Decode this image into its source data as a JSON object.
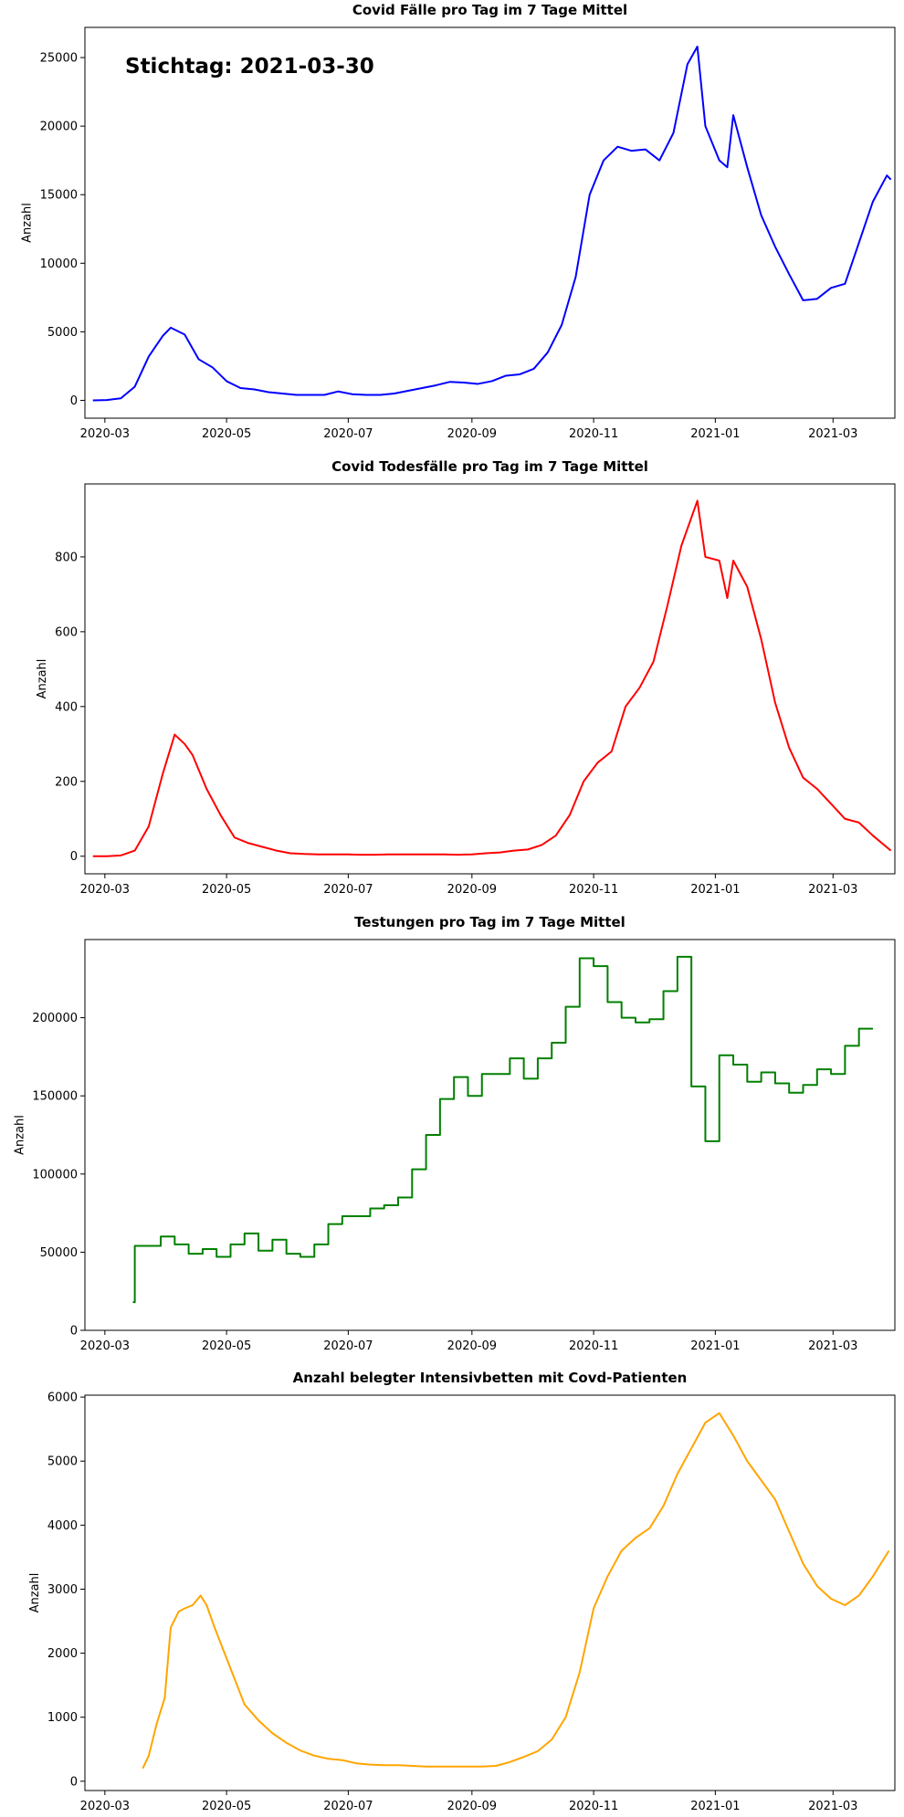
{
  "chart_data": [
    {
      "type": "line",
      "title": "Covid Fälle pro Tag im 7 Tage Mittel",
      "annotation": "Stichtag: 2021-03-30",
      "ylabel": "Anzahl",
      "color": "#0000ff",
      "x": [
        "2020-02-24",
        "2020-03-02",
        "2020-03-09",
        "2020-03-16",
        "2020-03-23",
        "2020-03-30",
        "2020-04-03",
        "2020-04-10",
        "2020-04-17",
        "2020-04-24",
        "2020-05-01",
        "2020-05-08",
        "2020-05-15",
        "2020-05-22",
        "2020-05-29",
        "2020-06-05",
        "2020-06-12",
        "2020-06-19",
        "2020-06-26",
        "2020-07-03",
        "2020-07-10",
        "2020-07-17",
        "2020-07-24",
        "2020-07-31",
        "2020-08-07",
        "2020-08-14",
        "2020-08-21",
        "2020-08-28",
        "2020-09-04",
        "2020-09-11",
        "2020-09-18",
        "2020-09-25",
        "2020-10-02",
        "2020-10-09",
        "2020-10-16",
        "2020-10-23",
        "2020-10-30",
        "2020-11-06",
        "2020-11-13",
        "2020-11-20",
        "2020-11-27",
        "2020-12-04",
        "2020-12-11",
        "2020-12-18",
        "2020-12-23",
        "2020-12-27",
        "2021-01-03",
        "2021-01-07",
        "2021-01-10",
        "2021-01-17",
        "2021-01-24",
        "2021-01-31",
        "2021-02-07",
        "2021-02-14",
        "2021-02-21",
        "2021-02-28",
        "2021-03-07",
        "2021-03-14",
        "2021-03-21",
        "2021-03-28",
        "2021-03-30"
      ],
      "values": [
        0,
        20,
        150,
        1000,
        3200,
        4700,
        5300,
        4800,
        3000,
        2400,
        1400,
        900,
        800,
        600,
        500,
        400,
        400,
        400,
        650,
        450,
        400,
        400,
        500,
        700,
        900,
        1100,
        1350,
        1300,
        1200,
        1400,
        1800,
        1900,
        2300,
        3500,
        5500,
        9000,
        15000,
        17500,
        18500,
        18200,
        18300,
        17500,
        19500,
        24500,
        25800,
        20000,
        17500,
        17000,
        20800,
        17000,
        13500,
        11200,
        9200,
        7300,
        7400,
        8200,
        8500,
        11500,
        14500,
        16400,
        16100
      ],
      "xlim": [
        "2020-02-20",
        "2021-04-01"
      ],
      "ylim": [
        -1300,
        27200
      ],
      "xticks": [
        {
          "value": "2020-03-01",
          "label": "2020-03"
        },
        {
          "value": "2020-05-01",
          "label": "2020-05"
        },
        {
          "value": "2020-07-01",
          "label": "2020-07"
        },
        {
          "value": "2020-09-01",
          "label": "2020-09"
        },
        {
          "value": "2020-11-01",
          "label": "2020-11"
        },
        {
          "value": "2021-01-01",
          "label": "2021-01"
        },
        {
          "value": "2021-03-01",
          "label": "2021-03"
        }
      ],
      "yticks": [
        0,
        5000,
        10000,
        15000,
        20000,
        25000
      ]
    },
    {
      "type": "line",
      "title": "Covid Todesfälle pro Tag im 7 Tage Mittel",
      "ylabel": "Anzahl",
      "color": "#ff0000",
      "x": [
        "2020-02-24",
        "2020-03-02",
        "2020-03-09",
        "2020-03-16",
        "2020-03-23",
        "2020-03-30",
        "2020-04-05",
        "2020-04-10",
        "2020-04-14",
        "2020-04-21",
        "2020-04-28",
        "2020-05-05",
        "2020-05-12",
        "2020-05-19",
        "2020-05-26",
        "2020-06-02",
        "2020-06-09",
        "2020-06-16",
        "2020-06-23",
        "2020-06-30",
        "2020-07-07",
        "2020-07-14",
        "2020-07-21",
        "2020-07-28",
        "2020-08-04",
        "2020-08-11",
        "2020-08-18",
        "2020-08-25",
        "2020-09-01",
        "2020-09-08",
        "2020-09-15",
        "2020-09-22",
        "2020-09-29",
        "2020-10-06",
        "2020-10-13",
        "2020-10-20",
        "2020-10-27",
        "2020-11-03",
        "2020-11-10",
        "2020-11-17",
        "2020-11-24",
        "2020-12-01",
        "2020-12-08",
        "2020-12-15",
        "2020-12-19",
        "2020-12-23",
        "2020-12-27",
        "2021-01-03",
        "2021-01-07",
        "2021-01-10",
        "2021-01-17",
        "2021-01-24",
        "2021-01-31",
        "2021-02-07",
        "2021-02-14",
        "2021-02-21",
        "2021-02-28",
        "2021-03-07",
        "2021-03-14",
        "2021-03-21",
        "2021-03-30"
      ],
      "values": [
        0,
        0,
        2,
        15,
        80,
        220,
        325,
        300,
        270,
        180,
        110,
        50,
        35,
        25,
        15,
        8,
        6,
        5,
        5,
        5,
        4,
        4,
        5,
        5,
        5,
        5,
        5,
        4,
        5,
        8,
        10,
        15,
        18,
        30,
        55,
        110,
        200,
        250,
        280,
        400,
        450,
        520,
        670,
        830,
        890,
        950,
        800,
        790,
        690,
        790,
        720,
        580,
        410,
        290,
        210,
        180,
        140,
        100,
        90,
        55,
        15
      ],
      "xlim": [
        "2020-02-20",
        "2021-04-01"
      ],
      "ylim": [
        -47,
        995
      ],
      "xticks": [
        {
          "value": "2020-03-01",
          "label": "2020-03"
        },
        {
          "value": "2020-05-01",
          "label": "2020-05"
        },
        {
          "value": "2020-07-01",
          "label": "2020-07"
        },
        {
          "value": "2020-09-01",
          "label": "2020-09"
        },
        {
          "value": "2020-11-01",
          "label": "2020-11"
        },
        {
          "value": "2021-01-01",
          "label": "2021-01"
        },
        {
          "value": "2021-03-01",
          "label": "2021-03"
        }
      ],
      "yticks": [
        0,
        200,
        400,
        600,
        800
      ]
    },
    {
      "type": "line",
      "drawstyle": "steps-post",
      "title": "Testungen pro Tag im 7 Tage Mittel",
      "ylabel": "Anzahl",
      "color": "#008000",
      "x": [
        "2020-03-15",
        "2020-03-16",
        "2020-03-22",
        "2020-03-29",
        "2020-04-05",
        "2020-04-12",
        "2020-04-19",
        "2020-04-26",
        "2020-05-03",
        "2020-05-10",
        "2020-05-17",
        "2020-05-24",
        "2020-05-31",
        "2020-06-07",
        "2020-06-14",
        "2020-06-21",
        "2020-06-28",
        "2020-07-05",
        "2020-07-12",
        "2020-07-19",
        "2020-07-26",
        "2020-08-02",
        "2020-08-09",
        "2020-08-16",
        "2020-08-23",
        "2020-08-30",
        "2020-09-06",
        "2020-09-13",
        "2020-09-20",
        "2020-09-27",
        "2020-10-04",
        "2020-10-11",
        "2020-10-18",
        "2020-10-25",
        "2020-11-01",
        "2020-11-08",
        "2020-11-15",
        "2020-11-22",
        "2020-11-29",
        "2020-12-06",
        "2020-12-13",
        "2020-12-20",
        "2020-12-27",
        "2021-01-03",
        "2021-01-10",
        "2021-01-17",
        "2021-01-24",
        "2021-01-31",
        "2021-02-07",
        "2021-02-14",
        "2021-02-21",
        "2021-02-28",
        "2021-03-07",
        "2021-03-14",
        "2021-03-21"
      ],
      "values": [
        18000,
        54000,
        54000,
        60000,
        55000,
        49000,
        52000,
        47000,
        55000,
        62000,
        51000,
        58000,
        49000,
        47000,
        55000,
        68000,
        73000,
        73000,
        78000,
        80000,
        85000,
        103000,
        125000,
        148000,
        162000,
        150000,
        164000,
        164000,
        174000,
        161000,
        174000,
        184000,
        207000,
        238000,
        233000,
        210000,
        200000,
        197000,
        199000,
        217000,
        239000,
        156000,
        121000,
        176000,
        170000,
        159000,
        165000,
        158000,
        152000,
        157000,
        167000,
        164000,
        182000,
        193000,
        193000
      ],
      "xlim": [
        "2020-02-20",
        "2021-04-01"
      ],
      "ylim": [
        0,
        250000
      ],
      "xticks": [
        {
          "value": "2020-03-01",
          "label": "2020-03"
        },
        {
          "value": "2020-05-01",
          "label": "2020-05"
        },
        {
          "value": "2020-07-01",
          "label": "2020-07"
        },
        {
          "value": "2020-09-01",
          "label": "2020-09"
        },
        {
          "value": "2020-11-01",
          "label": "2020-11"
        },
        {
          "value": "2021-01-01",
          "label": "2021-01"
        },
        {
          "value": "2021-03-01",
          "label": "2021-03"
        }
      ],
      "yticks": [
        0,
        50000,
        100000,
        150000,
        200000
      ]
    },
    {
      "type": "line",
      "title": "Anzahl belegter Intensivbetten mit Covd-Patienten",
      "ylabel": "Anzahl",
      "color": "#ffa500",
      "x": [
        "2020-03-20",
        "2020-03-23",
        "2020-03-27",
        "2020-03-31",
        "2020-04-03",
        "2020-04-07",
        "2020-04-10",
        "2020-04-14",
        "2020-04-18",
        "2020-04-21",
        "2020-04-25",
        "2020-04-30",
        "2020-05-05",
        "2020-05-10",
        "2020-05-17",
        "2020-05-24",
        "2020-05-31",
        "2020-06-07",
        "2020-06-14",
        "2020-06-21",
        "2020-06-28",
        "2020-07-05",
        "2020-07-12",
        "2020-07-19",
        "2020-07-26",
        "2020-08-02",
        "2020-08-09",
        "2020-08-16",
        "2020-08-23",
        "2020-08-30",
        "2020-09-06",
        "2020-09-13",
        "2020-09-20",
        "2020-09-27",
        "2020-10-04",
        "2020-10-11",
        "2020-10-18",
        "2020-10-25",
        "2020-11-01",
        "2020-11-08",
        "2020-11-15",
        "2020-11-22",
        "2020-11-29",
        "2020-12-06",
        "2020-12-13",
        "2020-12-20",
        "2020-12-27",
        "2021-01-03",
        "2021-01-10",
        "2021-01-17",
        "2021-01-24",
        "2021-01-31",
        "2021-02-07",
        "2021-02-14",
        "2021-02-21",
        "2021-02-28",
        "2021-03-07",
        "2021-03-14",
        "2021-03-21",
        "2021-03-29"
      ],
      "values": [
        200,
        400,
        900,
        1300,
        2400,
        2650,
        2700,
        2750,
        2900,
        2750,
        2400,
        2000,
        1600,
        1200,
        950,
        750,
        600,
        480,
        400,
        350,
        330,
        280,
        260,
        250,
        250,
        240,
        230,
        230,
        230,
        230,
        230,
        240,
        300,
        380,
        470,
        650,
        1000,
        1700,
        2700,
        3200,
        3600,
        3800,
        3950,
        4300,
        4800,
        5200,
        5600,
        5750,
        5400,
        5000,
        4700,
        4400,
        3900,
        3400,
        3050,
        2850,
        2750,
        2900,
        3200,
        3600
      ],
      "xlim": [
        "2020-02-20",
        "2021-04-01"
      ],
      "ylim": [
        -145,
        6030
      ],
      "xticks": [
        {
          "value": "2020-03-01",
          "label": "2020-03"
        },
        {
          "value": "2020-05-01",
          "label": "2020-05"
        },
        {
          "value": "2020-07-01",
          "label": "2020-07"
        },
        {
          "value": "2020-09-01",
          "label": "2020-09"
        },
        {
          "value": "2020-11-01",
          "label": "2020-11"
        },
        {
          "value": "2021-01-01",
          "label": "2021-01"
        },
        {
          "value": "2021-03-01",
          "label": "2021-03"
        }
      ],
      "yticks": [
        0,
        1000,
        2000,
        3000,
        4000,
        5000,
        6000
      ]
    }
  ]
}
